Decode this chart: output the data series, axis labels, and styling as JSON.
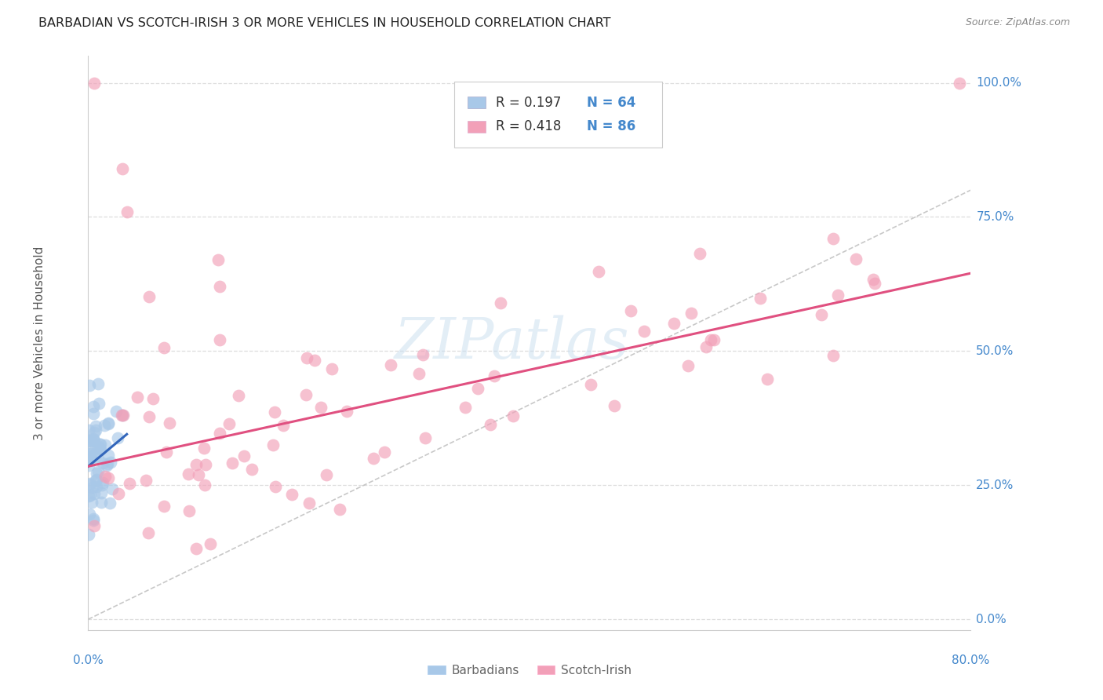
{
  "title": "BARBADIAN VS SCOTCH-IRISH 3 OR MORE VEHICLES IN HOUSEHOLD CORRELATION CHART",
  "source": "Source: ZipAtlas.com",
  "ylabel": "3 or more Vehicles in Household",
  "xlim": [
    0.0,
    0.8
  ],
  "ylim": [
    -0.02,
    1.05
  ],
  "ytick_values": [
    0.0,
    0.25,
    0.5,
    0.75,
    1.0
  ],
  "xtick_label_left": "0.0%",
  "xtick_label_right": "80.0%",
  "watermark": "ZIPatlas",
  "legend_R1": "R = 0.197",
  "legend_N1": "N = 64",
  "legend_R2": "R = 0.418",
  "legend_N2": "N = 86",
  "barbadian_color": "#a8c8e8",
  "scotchirish_color": "#f2a0b8",
  "barbadian_line_color": "#3366bb",
  "scotchirish_line_color": "#e05080",
  "diagonal_color": "#bbbbbb",
  "grid_color": "#dddddd",
  "title_color": "#222222",
  "tick_color": "#4488cc",
  "ylabel_color": "#555555",
  "source_color": "#888888",
  "legend_text_color": "#333333",
  "legend_N_color": "#4488cc",
  "bottom_legend_color": "#666666",
  "barb_line_x0": 0.0,
  "barb_line_x1": 0.035,
  "barb_line_y0": 0.285,
  "barb_line_y1": 0.345,
  "scotch_line_x0": 0.0,
  "scotch_line_x1": 0.8,
  "scotch_line_y0": 0.285,
  "scotch_line_y1": 0.645
}
